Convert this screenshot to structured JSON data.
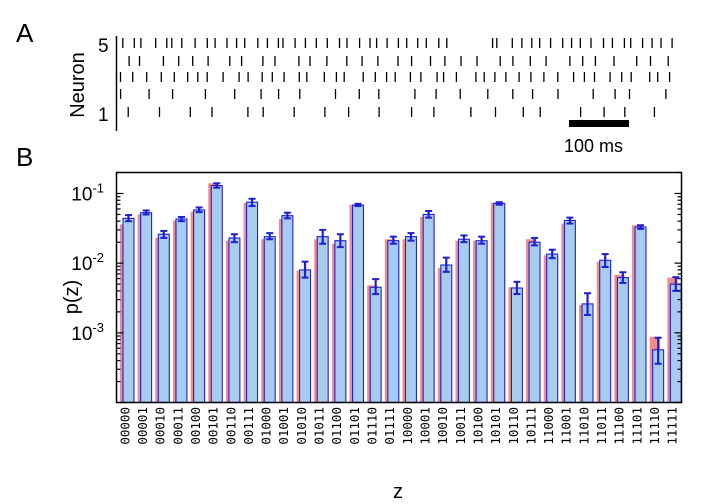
{
  "panels": {
    "a": {
      "letter": "A",
      "ylabel": "Neuron",
      "ytick_top": "5",
      "ytick_bottom": "1",
      "scalebar_label": "100 ms"
    },
    "b": {
      "letter": "B"
    }
  },
  "chart_data": [
    {
      "type": "raster",
      "ylabel": "Neuron",
      "neurons": [
        1,
        2,
        3,
        4,
        5
      ],
      "scale_bar": {
        "duration_ms": 100,
        "label": "100 ms"
      },
      "approx_spike_counts": {
        "5": 55,
        "4": 33,
        "3": 45,
        "2": 22,
        "1": 20
      }
    },
    {
      "type": "bar",
      "xlabel": "z",
      "ylabel": "p(z)",
      "yscale": "log",
      "ylim": [
        0.0001,
        0.2
      ],
      "yticks": [
        0.001,
        0.01,
        0.1
      ],
      "ytick_labels": [
        {
          "base": "10",
          "exp": "-3"
        },
        {
          "base": "10",
          "exp": "-2"
        },
        {
          "base": "10",
          "exp": "-1"
        }
      ],
      "categories": [
        "00000",
        "00001",
        "00010",
        "00011",
        "00100",
        "00101",
        "00110",
        "00111",
        "01000",
        "01001",
        "01010",
        "01011",
        "01100",
        "01101",
        "01110",
        "01111",
        "10000",
        "10001",
        "10010",
        "10011",
        "10100",
        "10101",
        "10110",
        "10111",
        "11000",
        "11001",
        "11010",
        "11011",
        "11100",
        "11101",
        "11110",
        "11111"
      ],
      "series": [
        {
          "color": "#f08c8c",
          "values": [
            0.036,
            0.05,
            0.023,
            0.041,
            0.055,
            0.14,
            0.021,
            0.073,
            0.022,
            0.043,
            0.0078,
            0.022,
            0.019,
            0.069,
            0.0048,
            0.022,
            0.022,
            0.046,
            0.0085,
            0.021,
            0.021,
            0.074,
            0.0045,
            0.022,
            0.013,
            0.037,
            0.0025,
            0.0105,
            0.0068,
            0.035,
            0.00088,
            0.0062
          ]
        },
        {
          "color": "#a8ccf0",
          "edge_color": "#2020d0",
          "values": [
            0.044,
            0.053,
            0.026,
            0.043,
            0.058,
            0.13,
            0.023,
            0.075,
            0.024,
            0.048,
            0.008,
            0.024,
            0.021,
            0.068,
            0.0045,
            0.021,
            0.024,
            0.05,
            0.0094,
            0.022,
            0.021,
            0.072,
            0.0044,
            0.02,
            0.0135,
            0.041,
            0.0026,
            0.011,
            0.0062,
            0.033,
            0.00057,
            0.005
          ],
          "errors": [
            [
              0.04,
              0.049
            ],
            [
              0.05,
              0.057
            ],
            [
              0.023,
              0.029
            ],
            [
              0.04,
              0.046
            ],
            [
              0.054,
              0.063
            ],
            [
              0.121,
              0.14
            ],
            [
              0.02,
              0.026
            ],
            [
              0.066,
              0.084
            ],
            [
              0.022,
              0.027
            ],
            [
              0.044,
              0.053
            ],
            [
              0.0062,
              0.0105
            ],
            [
              0.019,
              0.03
            ],
            [
              0.017,
              0.026
            ],
            [
              0.066,
              0.071
            ],
            [
              0.0036,
              0.0059
            ],
            [
              0.019,
              0.024
            ],
            [
              0.021,
              0.027
            ],
            [
              0.045,
              0.056
            ],
            [
              0.0075,
              0.012
            ],
            [
              0.02,
              0.025
            ],
            [
              0.019,
              0.024
            ],
            [
              0.069,
              0.075
            ],
            [
              0.0036,
              0.0054
            ],
            [
              0.018,
              0.023
            ],
            [
              0.0118,
              0.0156
            ],
            [
              0.037,
              0.045
            ],
            [
              0.0018,
              0.0037
            ],
            [
              0.0088,
              0.0135
            ],
            [
              0.0052,
              0.0074
            ],
            [
              0.031,
              0.035
            ],
            [
              0.00036,
              0.00085
            ],
            [
              0.004,
              0.0063
            ]
          ]
        }
      ]
    }
  ]
}
